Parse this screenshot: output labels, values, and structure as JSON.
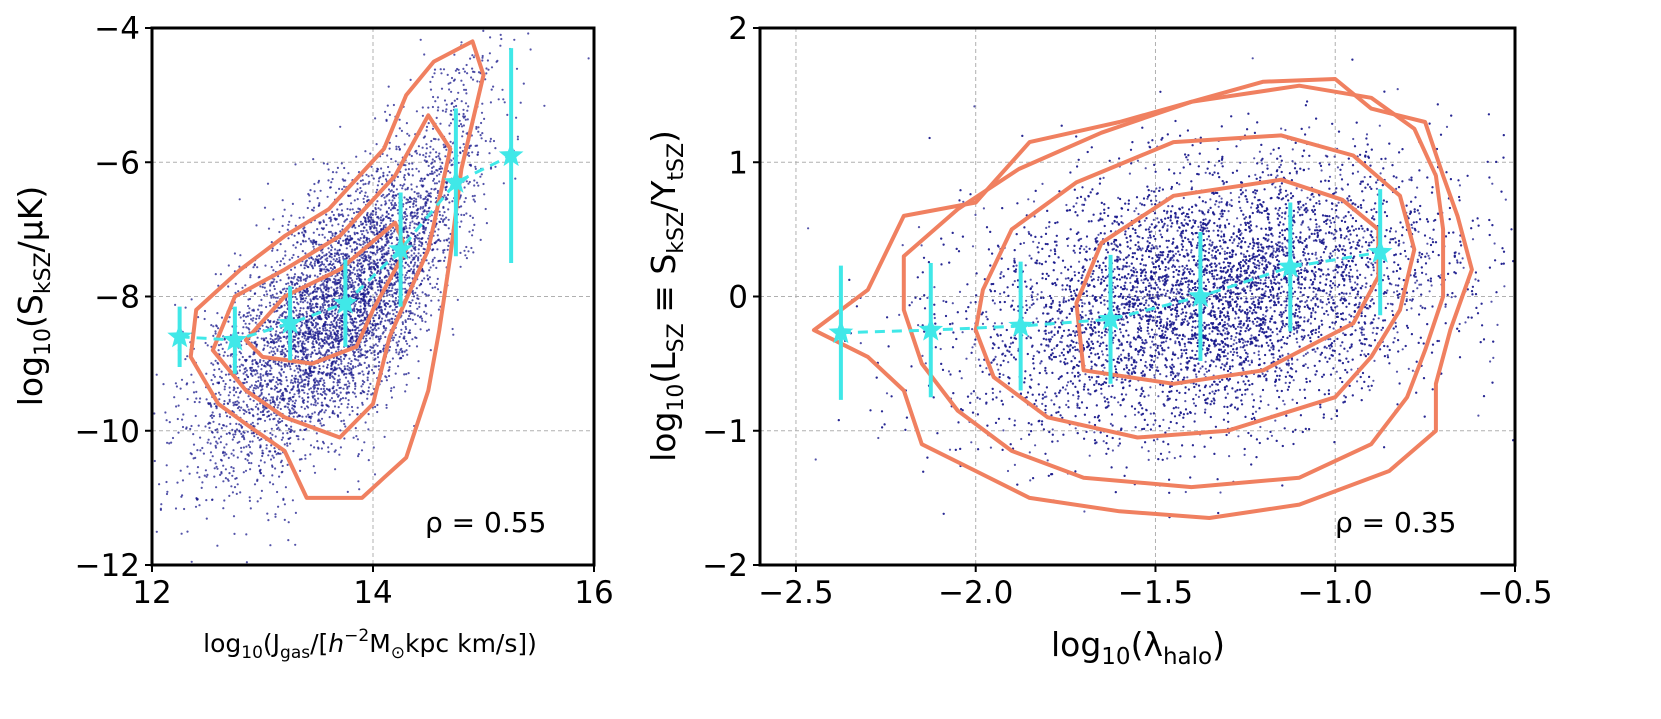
{
  "chart_data": [
    {
      "type": "scatter",
      "xlabel": "log10(Jgas/[h^-2 M⊙ kpc km/s])",
      "ylabel": "log10(SkSZ/μK)",
      "xlim": [
        12,
        16
      ],
      "ylim": [
        -12,
        -4
      ],
      "xticks": [
        12,
        14,
        16
      ],
      "yticks": [
        -12,
        -10,
        -8,
        -6,
        -4
      ],
      "grid": true,
      "annotation": "ρ = 0.55",
      "annotation_position": "bottom-right",
      "scatter_cloud": {
        "color": "#1a1a8c",
        "center": [
          13.8,
          -8.0
        ],
        "ridge": [
          [
            12.3,
            -8.8
          ],
          [
            13.3,
            -8.5
          ],
          [
            14.0,
            -8.1
          ],
          [
            14.6,
            -6.6
          ],
          [
            15.3,
            -6.0
          ]
        ]
      },
      "binned_means": {
        "x": [
          12.25,
          12.75,
          13.25,
          13.75,
          14.25,
          14.75,
          15.25
        ],
        "y": [
          -8.6,
          -8.65,
          -8.4,
          -8.1,
          -7.3,
          -6.3,
          -5.9
        ],
        "yerr": [
          0.45,
          0.5,
          0.55,
          0.65,
          0.85,
          1.1,
          1.6
        ],
        "color": "#40e8e8"
      },
      "contours": [
        {
          "level": "inner",
          "color": "#f08060",
          "points": [
            [
              12.85,
              -8.65
            ],
            [
              13.2,
              -8.0
            ],
            [
              13.7,
              -7.6
            ],
            [
              14.2,
              -6.9
            ],
            [
              14.3,
              -7.3
            ],
            [
              14.0,
              -8.2
            ],
            [
              13.85,
              -8.75
            ],
            [
              13.45,
              -9.0
            ],
            [
              13.0,
              -8.9
            ]
          ]
        },
        {
          "level": "middle",
          "color": "#f08060",
          "points": [
            [
              12.55,
              -8.8
            ],
            [
              12.75,
              -8.0
            ],
            [
              13.2,
              -7.6
            ],
            [
              13.7,
              -7.1
            ],
            [
              14.2,
              -6.2
            ],
            [
              14.5,
              -5.3
            ],
            [
              14.7,
              -5.8
            ],
            [
              14.5,
              -7.3
            ],
            [
              14.15,
              -8.6
            ],
            [
              14.0,
              -9.6
            ],
            [
              13.7,
              -10.1
            ],
            [
              13.2,
              -9.8
            ],
            [
              12.85,
              -9.4
            ]
          ]
        },
        {
          "level": "outer",
          "color": "#f08060",
          "points": [
            [
              12.35,
              -8.9
            ],
            [
              12.4,
              -8.2
            ],
            [
              12.8,
              -7.6
            ],
            [
              13.2,
              -7.1
            ],
            [
              13.6,
              -6.7
            ],
            [
              14.1,
              -5.8
            ],
            [
              14.3,
              -5.0
            ],
            [
              14.55,
              -4.5
            ],
            [
              14.9,
              -4.2
            ],
            [
              15.0,
              -4.7
            ],
            [
              14.8,
              -6.1
            ],
            [
              14.7,
              -7.4
            ],
            [
              14.6,
              -8.5
            ],
            [
              14.5,
              -9.4
            ],
            [
              14.3,
              -10.4
            ],
            [
              14.1,
              -10.7
            ],
            [
              13.9,
              -11.0
            ],
            [
              13.4,
              -11.0
            ],
            [
              13.2,
              -10.3
            ],
            [
              12.85,
              -9.9
            ],
            [
              12.6,
              -9.6
            ]
          ]
        }
      ]
    },
    {
      "type": "scatter",
      "xlabel": "log10(λhalo)",
      "ylabel": "log10(LSZ ≡ SkSZ/YtSZ)",
      "xlim": [
        -2.6,
        -0.5
      ],
      "ylim": [
        -2,
        2
      ],
      "xticks": [
        -2.5,
        -2.0,
        -1.5,
        -1.0,
        -0.5
      ],
      "yticks": [
        -2,
        -1,
        0,
        1,
        2
      ],
      "grid": true,
      "annotation": "ρ = 0.35",
      "annotation_position": "bottom-right",
      "scatter_cloud": {
        "color": "#1a1a8c",
        "center": [
          -1.3,
          0.0
        ]
      },
      "binned_means": {
        "x": [
          -2.375,
          -2.125,
          -1.875,
          -1.625,
          -1.375,
          -1.125,
          -0.875
        ],
        "y": [
          -0.27,
          -0.25,
          -0.22,
          -0.17,
          0.0,
          0.22,
          0.33
        ],
        "yerr": [
          0.5,
          0.5,
          0.48,
          0.48,
          0.48,
          0.48,
          0.47
        ],
        "color": "#40e8e8"
      },
      "contours": [
        {
          "level": "inner",
          "color": "#f08060",
          "points": [
            [
              -1.72,
              -0.05
            ],
            [
              -1.65,
              0.4
            ],
            [
              -1.45,
              0.75
            ],
            [
              -1.15,
              0.87
            ],
            [
              -0.98,
              0.72
            ],
            [
              -0.88,
              0.5
            ],
            [
              -0.88,
              0.15
            ],
            [
              -0.95,
              -0.2
            ],
            [
              -1.2,
              -0.55
            ],
            [
              -1.45,
              -0.65
            ],
            [
              -1.7,
              -0.55
            ]
          ]
        },
        {
          "level": "middle",
          "color": "#f08060",
          "points": [
            [
              -1.98,
              0.05
            ],
            [
              -1.9,
              0.5
            ],
            [
              -1.72,
              0.85
            ],
            [
              -1.45,
              1.15
            ],
            [
              -1.15,
              1.2
            ],
            [
              -0.95,
              1.05
            ],
            [
              -0.82,
              0.75
            ],
            [
              -0.78,
              0.35
            ],
            [
              -0.82,
              -0.1
            ],
            [
              -0.9,
              -0.45
            ],
            [
              -1.0,
              -0.75
            ],
            [
              -1.3,
              -1.0
            ],
            [
              -1.55,
              -1.05
            ],
            [
              -1.8,
              -0.9
            ],
            [
              -1.95,
              -0.6
            ],
            [
              -2.0,
              -0.25
            ]
          ]
        },
        {
          "level": "outer",
          "color": "#f08060",
          "points": [
            [
              -2.2,
              0.3
            ],
            [
              -2.05,
              0.65
            ],
            [
              -1.88,
              0.95
            ],
            [
              -1.65,
              1.22
            ],
            [
              -1.4,
              1.45
            ],
            [
              -1.1,
              1.57
            ],
            [
              -0.9,
              1.48
            ],
            [
              -0.78,
              1.25
            ],
            [
              -0.72,
              0.9
            ],
            [
              -0.7,
              0.5
            ],
            [
              -0.7,
              0.0
            ],
            [
              -0.75,
              -0.4
            ],
            [
              -0.8,
              -0.75
            ],
            [
              -0.9,
              -1.1
            ],
            [
              -1.1,
              -1.35
            ],
            [
              -1.4,
              -1.42
            ],
            [
              -1.7,
              -1.35
            ],
            [
              -1.9,
              -1.15
            ],
            [
              -2.05,
              -0.85
            ],
            [
              -2.15,
              -0.5
            ],
            [
              -2.2,
              -0.1
            ]
          ]
        },
        {
          "level": "outermost",
          "color": "#f08060",
          "points": [
            [
              -2.45,
              -0.25
            ],
            [
              -2.3,
              0.05
            ],
            [
              -2.2,
              0.6
            ],
            [
              -2.0,
              0.7
            ],
            [
              -1.85,
              1.15
            ],
            [
              -1.6,
              1.3
            ],
            [
              -1.4,
              1.45
            ],
            [
              -1.2,
              1.6
            ],
            [
              -1.0,
              1.62
            ],
            [
              -0.9,
              1.4
            ],
            [
              -0.75,
              1.3
            ],
            [
              -0.7,
              0.9
            ],
            [
              -0.66,
              0.6
            ],
            [
              -0.62,
              0.2
            ],
            [
              -0.68,
              -0.25
            ],
            [
              -0.72,
              -0.65
            ],
            [
              -0.72,
              -1.0
            ],
            [
              -0.85,
              -1.3
            ],
            [
              -1.1,
              -1.55
            ],
            [
              -1.35,
              -1.65
            ],
            [
              -1.6,
              -1.6
            ],
            [
              -1.85,
              -1.5
            ],
            [
              -2.0,
              -1.3
            ],
            [
              -2.15,
              -1.1
            ],
            [
              -2.2,
              -0.7
            ],
            [
              -2.3,
              -0.45
            ]
          ]
        }
      ]
    }
  ]
}
